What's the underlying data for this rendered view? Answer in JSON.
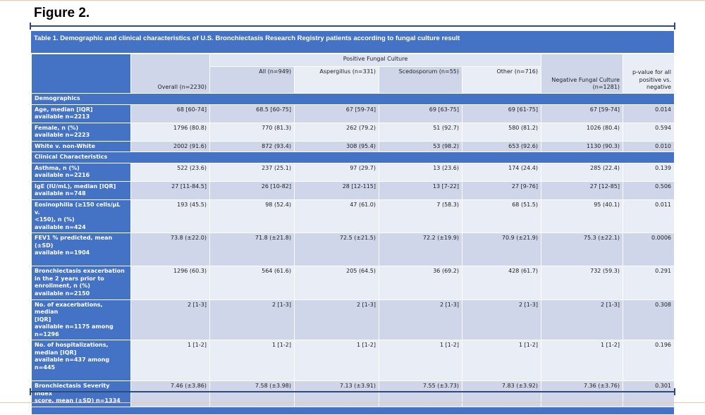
{
  "figure_title": "Figure 2.",
  "caption": "Table 1. Demographic and clinical characteristics of U.S. Bronchiectasis Research Registry patients according to fungal culture result",
  "header": {
    "group_label": "Positive Fungal Culture",
    "columns": [
      "",
      "Overall (n=2230)",
      "All (n=949)",
      "Aspergillus (n=331)",
      "Scedosporum (n=55)",
      "Other (n=716)",
      "Negative Fungal Culture (n=1281)",
      "p-value for all positive vs. negative"
    ]
  },
  "sections": [
    {
      "title": "Demographics",
      "rows": [
        {
          "label": [
            "Age, median [IQR]",
            "available n=2213"
          ],
          "values": [
            "68 [60-74]",
            "68.5 [60-75]",
            "67 [59-74]",
            "69 [63-75]",
            "69 [61-75]",
            "67 [59-74]",
            "0.014"
          ]
        },
        {
          "label": [
            "Female, n (%)",
            "available n=2223"
          ],
          "values": [
            "1796 (80.8)",
            "770 (81.3)",
            "262 (79.2)",
            "51 (92.7)",
            "580 (81.2)",
            "1026 (80.4)",
            "0.594"
          ]
        },
        {
          "label": [
            "White v. non-White"
          ],
          "values": [
            "2002 (91.6)",
            "872 (93.4)",
            "308 (95.4)",
            "53 (98.2)",
            "653 (92.6)",
            "1130 (90.3)",
            "0.010"
          ]
        }
      ]
    },
    {
      "title": "Clinical Characteristics",
      "rows": [
        {
          "label": [
            "Asthma, n (%)",
            "available n=2216"
          ],
          "values": [
            "522 (23.6)",
            "237 (25.1)",
            "97 (29.7)",
            "13 (23.6)",
            "174 (24.4)",
            "285 (22.4)",
            "0.139"
          ]
        },
        {
          "label": [
            "IgE (IU/mL), median [IQR]",
            "available n=748"
          ],
          "values": [
            "27 [11-84.5]",
            "26 [10-82]",
            "28 [12-115]",
            "13 [7-22]",
            "27 [9-76]",
            "27 [12-85]",
            "0.506"
          ]
        },
        {
          "label": [
            "Eosinophilia (≥150 cells/µL v.",
            "<150),  n (%)",
            "available n=424"
          ],
          "values": [
            "193 (45.5)",
            "98 (52.4)",
            "47 (61.0)",
            "7 (58.3)",
            "68 (51.5)",
            "95 (40.1)",
            "0.011"
          ]
        },
        {
          "label": [
            "FEV1 % predicted, mean (±SD)",
            "available n=1904",
            ""
          ],
          "values": [
            "73.8 (±22.0)",
            "71.8 (±21.8)",
            "72.5 (±21.5)",
            "72.2 (±19.9)",
            "70.9 (±21.9)",
            "75.3 (±22.1)",
            "0.0006"
          ]
        },
        {
          "label": [
            "Bronchiectasis exacerbation",
            "in the 2 years prior to",
            "enrollment, n (%)",
            "available n=2150"
          ],
          "values": [
            "1296 (60.3)",
            "564 (61.6)",
            "205 (64.5)",
            "36 (69.2)",
            "428 (61.7)",
            "732 (59.3)",
            "0.291"
          ]
        },
        {
          "label": [
            "No. of exacerbations, median",
            "[IQR]",
            "available n=1175  among",
            "n=1296"
          ],
          "values": [
            "2 [1-3]",
            "2 [1-3]",
            "2 [1-3]",
            "2 [1-3]",
            "2 [1-3]",
            "2 [1-3]",
            "0.308"
          ]
        },
        {
          "label": [
            "No. of hospitalizations,",
            "median [IQR]",
            "available n=437  among n=445",
            ""
          ],
          "values": [
            "1 [1-2]",
            "1 [1-2]",
            "1 [1-2]",
            "1 [1-2]",
            "1 [1-2]",
            "1 [1-2]",
            "0.196"
          ]
        },
        {
          "label": [
            "Bronchiectasis Severity Index",
            "score, mean (±SD) n=1334"
          ],
          "values": [
            "7.46 (±3.86)",
            "7.58 (±3.98)",
            "7.13 (±3.91)",
            "7.55 (±3.73)",
            "7.83 (±3.92)",
            "7.36 (±3.76)",
            "0.301"
          ]
        }
      ]
    }
  ]
}
